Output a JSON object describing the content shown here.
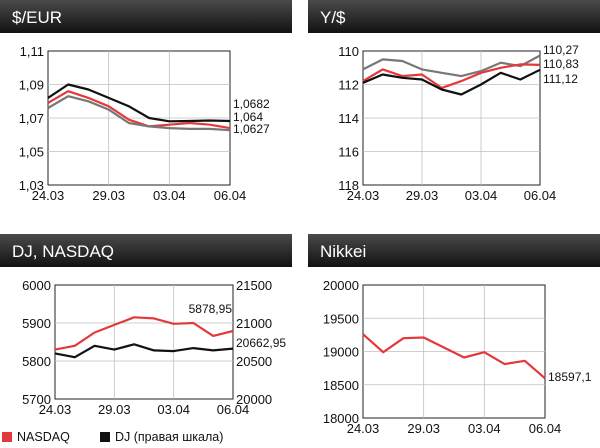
{
  "colors": {
    "red": "#e4393a",
    "black": "#111111",
    "gray": "#777777",
    "grid": "#bfbfbf"
  },
  "legend": {
    "nasdaq": "NASDAQ",
    "dj": "DJ (правая шкала)"
  },
  "chart_data": [
    {
      "type": "line",
      "title": "$/EUR",
      "x_ticks": [
        "24.03",
        "29.03",
        "03.04",
        "06.04"
      ],
      "y_ticks": [
        "1,11",
        "1,09",
        "1,07",
        "1,05",
        "1,03"
      ],
      "ylim": [
        1.03,
        1.11
      ],
      "grid": true,
      "series": [
        {
          "color": "black",
          "values": [
            1.082,
            1.09,
            1.087,
            1.082,
            1.077,
            1.07,
            1.068,
            1.0682,
            1.0685,
            1.0682
          ],
          "end_label": "1,0682"
        },
        {
          "color": "red",
          "values": [
            1.079,
            1.086,
            1.082,
            1.077,
            1.069,
            1.065,
            1.066,
            1.067,
            1.066,
            1.064
          ],
          "end_label": "1,064"
        },
        {
          "color": "gray",
          "values": [
            1.076,
            1.083,
            1.08,
            1.075,
            1.067,
            1.065,
            1.064,
            1.0635,
            1.0635,
            1.0627
          ],
          "end_label": "1,0627"
        }
      ]
    },
    {
      "type": "line",
      "title": "Y/$",
      "x_ticks": [
        "24.03",
        "29.03",
        "03.04",
        "06.04"
      ],
      "y_ticks": [
        "110",
        "112",
        "114",
        "116",
        "118"
      ],
      "ylim": [
        110,
        118
      ],
      "y_inverted": true,
      "grid": true,
      "series": [
        {
          "color": "gray",
          "values": [
            111.1,
            110.5,
            110.6,
            111.1,
            111.3,
            111.5,
            111.2,
            110.7,
            110.9,
            110.27
          ],
          "end_label": "110,27"
        },
        {
          "color": "red",
          "values": [
            111.8,
            111.1,
            111.5,
            111.4,
            112.2,
            111.8,
            111.3,
            111.0,
            110.8,
            110.83
          ],
          "end_label": "110,83"
        },
        {
          "color": "black",
          "values": [
            111.9,
            111.4,
            111.6,
            111.7,
            112.3,
            112.6,
            112.0,
            111.3,
            111.7,
            111.12
          ],
          "end_label": "111,12"
        }
      ]
    },
    {
      "type": "line",
      "title": "DJ, NASDAQ",
      "x_ticks": [
        "24.03",
        "29.03",
        "03.04",
        "06.04"
      ],
      "y_ticks": [
        "6000",
        "5900",
        "5800",
        "5700"
      ],
      "ylim": [
        5700,
        6000
      ],
      "y2_ticks": [
        "21500",
        "21000",
        "20500",
        "20000"
      ],
      "y2lim": [
        20000,
        21500
      ],
      "grid": true,
      "series": [
        {
          "name": "NASDAQ",
          "color": "red",
          "values": [
            5830,
            5840,
            5875,
            5895,
            5915,
            5912,
            5898,
            5900,
            5866,
            5878.95
          ],
          "end_label": "5878,95"
        },
        {
          "name": "DJ (правая шкала)",
          "color": "black",
          "axis": "right",
          "values": [
            20600,
            20550,
            20700,
            20650,
            20720,
            20640,
            20630,
            20670,
            20640,
            20662.95
          ],
          "end_label": "20662,95"
        }
      ]
    },
    {
      "type": "line",
      "title": "Nikkei",
      "x_ticks": [
        "24.03",
        "29.03",
        "03.04",
        "06.04"
      ],
      "y_ticks": [
        "20000",
        "19500",
        "19000",
        "18500",
        "18000"
      ],
      "ylim": [
        18000,
        20000
      ],
      "grid": true,
      "series": [
        {
          "color": "red",
          "values": [
            19260,
            18990,
            19200,
            19210,
            19060,
            18910,
            18990,
            18810,
            18860,
            18597.1
          ],
          "end_label": "18597,1"
        }
      ]
    }
  ]
}
